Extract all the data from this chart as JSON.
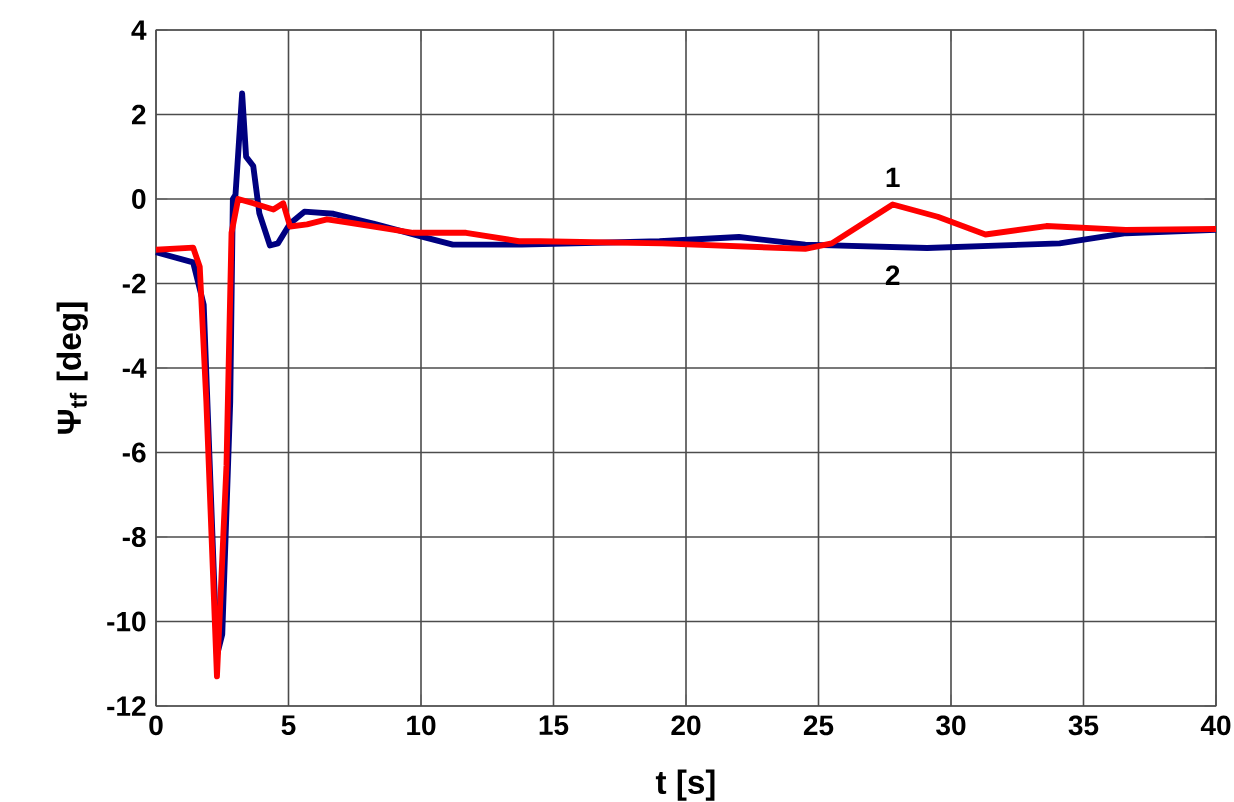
{
  "chart_data": {
    "type": "line",
    "xlabel": "t [s]",
    "ylabel": "Ψ$_{tf}$ [deg]",
    "xlim": [
      0,
      40
    ],
    "ylim": [
      -12,
      4
    ],
    "xticks": [
      0,
      5,
      10,
      15,
      20,
      25,
      30,
      35,
      40
    ],
    "yticks": [
      -12,
      -10,
      -8,
      -6,
      -4,
      -2,
      0,
      2,
      4
    ],
    "grid": true,
    "marker": "none",
    "line_style": "solid",
    "series": [
      {
        "name": "1",
        "color": "#ff0000",
        "x": [
          0,
          1.4,
          1.65,
          1.9,
          2.3,
          2.66,
          2.85,
          3.1,
          3.67,
          4.43,
          4.8,
          5.06,
          5.7,
          6.45,
          7.2,
          8.7,
          9.7,
          11.7,
          13.7,
          14.5,
          19.1,
          24.5,
          25.5,
          27.8,
          29.5,
          31.3,
          33.6,
          36.6,
          40
        ],
        "values": [
          -1.2,
          -1.15,
          -1.6,
          -4.8,
          -11.3,
          -6.3,
          -0.8,
          0,
          -0.1,
          -0.25,
          -0.1,
          -0.65,
          -0.6,
          -0.48,
          -0.55,
          -0.7,
          -0.8,
          -0.8,
          -1.0,
          -1.0,
          -1.05,
          -1.18,
          -1.05,
          -0.13,
          -0.42,
          -0.84,
          -0.64,
          -0.73,
          -0.71
        ]
      },
      {
        "name": "2",
        "color": "#000080",
        "x": [
          0,
          1.4,
          1.8,
          2.3,
          2.5,
          2.8,
          2.9,
          3.0,
          3.25,
          3.4,
          3.67,
          3.9,
          4.3,
          4.6,
          5.06,
          5.6,
          6.7,
          8.2,
          9.96,
          11.2,
          13.8,
          19.0,
          22.0,
          24.5,
          29.1,
          34.1,
          36.6,
          40
        ],
        "values": [
          -1.26,
          -1.5,
          -2.5,
          -10.8,
          -10.3,
          -4.8,
          0,
          0.1,
          2.5,
          1.0,
          0.78,
          -0.34,
          -1.1,
          -1.05,
          -0.58,
          -0.3,
          -0.35,
          -0.58,
          -0.88,
          -1.08,
          -1.08,
          -1.0,
          -0.9,
          -1.08,
          -1.16,
          -1.05,
          -0.81,
          -0.73
        ]
      }
    ]
  }
}
